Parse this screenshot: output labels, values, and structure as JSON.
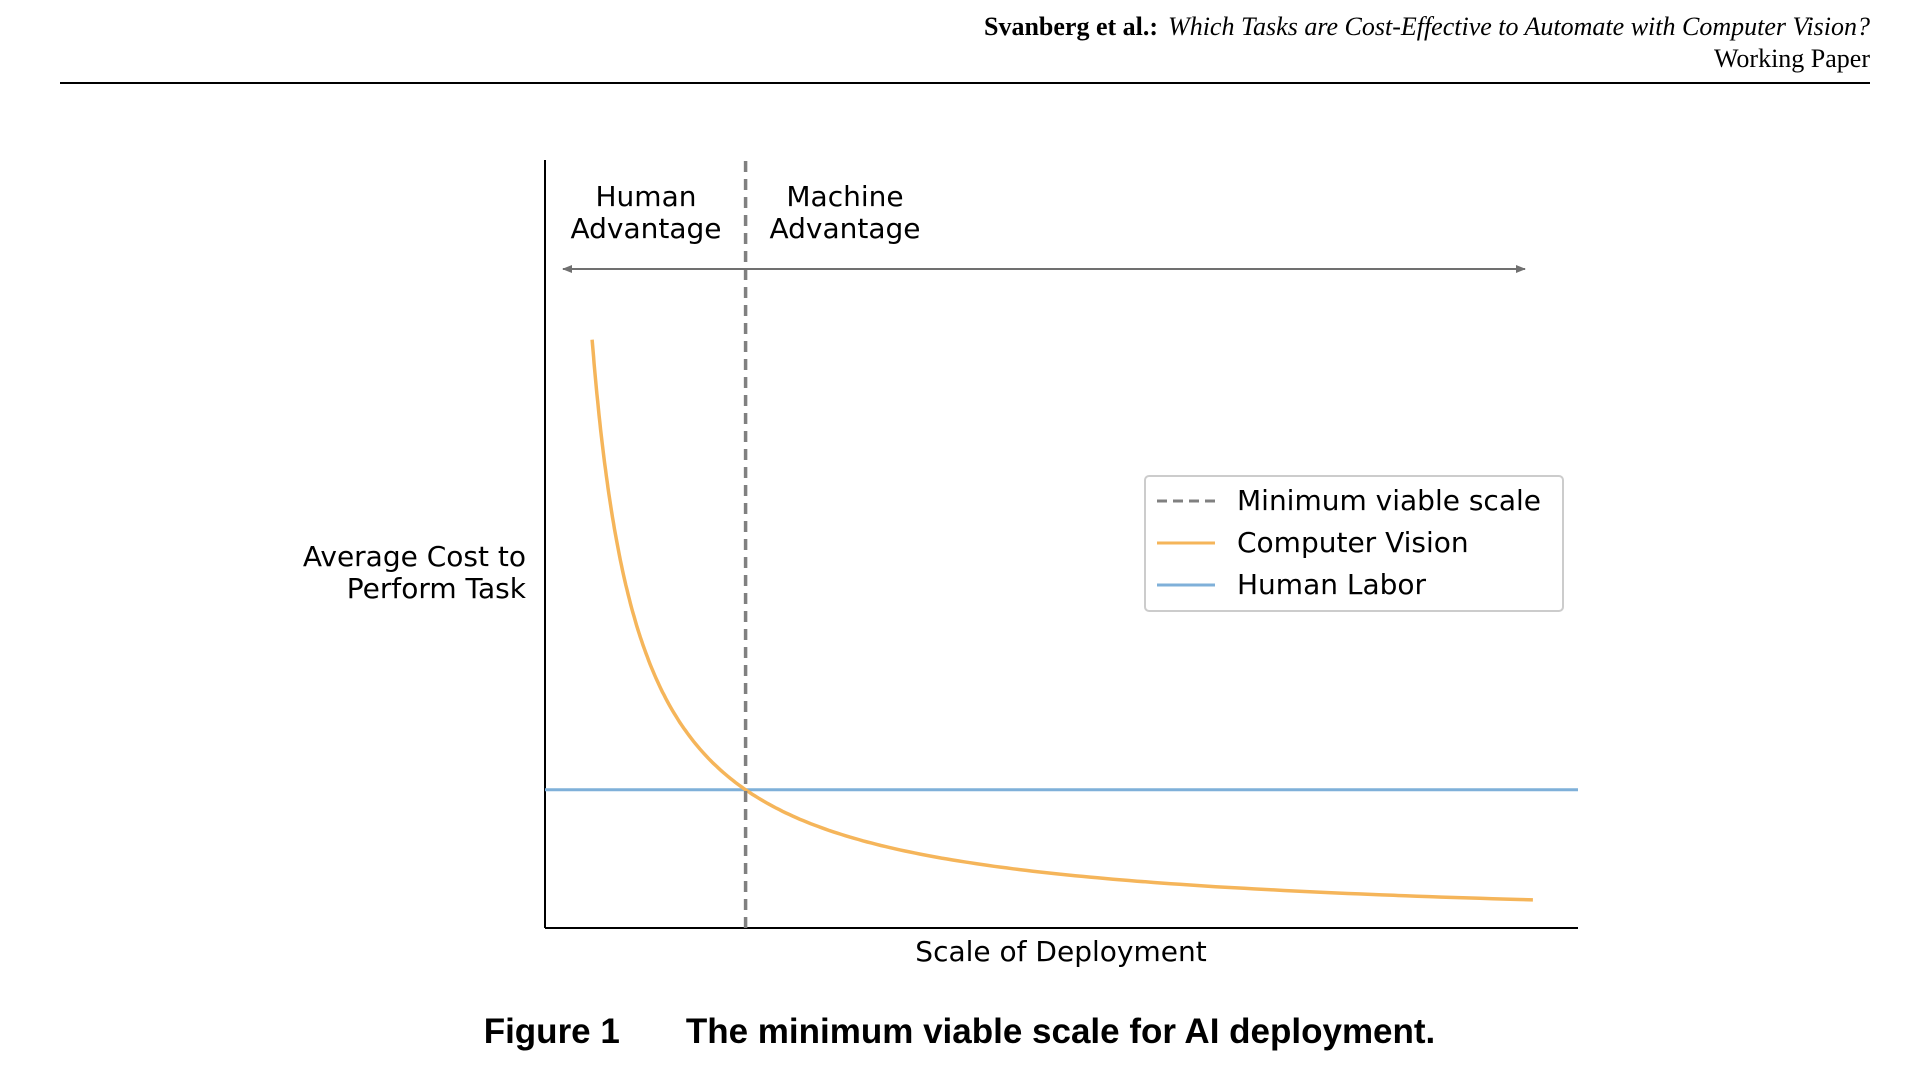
{
  "header": {
    "authors": "Svanberg et al.:",
    "paper_title": "Which Tasks are Cost-Effective to Automate with Computer Vision?",
    "status": "Working Paper"
  },
  "figure": {
    "caption_label": "Figure 1",
    "caption_text": "The minimum viable scale for AI deployment."
  },
  "chart_data": {
    "type": "line",
    "title": "",
    "xlabel": "Scale of Deployment",
    "ylabel_lines": [
      "Average Cost to",
      "Perform Task"
    ],
    "xlim": [
      0,
      10.3
    ],
    "ylim": [
      0,
      10
    ],
    "ticks": "none",
    "grid": false,
    "legend_position": "center-right",
    "region_labels": {
      "left": [
        "Human",
        "Advantage"
      ],
      "right": [
        "Machine",
        "Advantage"
      ]
    },
    "series": [
      {
        "name": "Minimum viable scale",
        "style": "dashed",
        "color": "#808080",
        "x": [
          2,
          2
        ],
        "y": [
          0,
          10
        ]
      },
      {
        "name": "Computer Vision",
        "style": "solid",
        "color": "#f5b55a",
        "function": "y = 3.6/x",
        "x": [
          0.47,
          0.6,
          0.8,
          1.0,
          1.25,
          1.5,
          2.0,
          2.5,
          3.0,
          4.0,
          5.0,
          6.0,
          7.0,
          8.0,
          9.0,
          9.85
        ],
        "y": [
          7.66,
          6.0,
          4.5,
          3.6,
          2.88,
          2.4,
          1.8,
          1.44,
          1.2,
          0.9,
          0.72,
          0.6,
          0.51,
          0.45,
          0.4,
          0.37
        ]
      },
      {
        "name": "Human Labor",
        "style": "solid",
        "color": "#7fb0d9",
        "x": [
          0,
          10.3
        ],
        "y": [
          1.8,
          1.8
        ]
      }
    ]
  }
}
